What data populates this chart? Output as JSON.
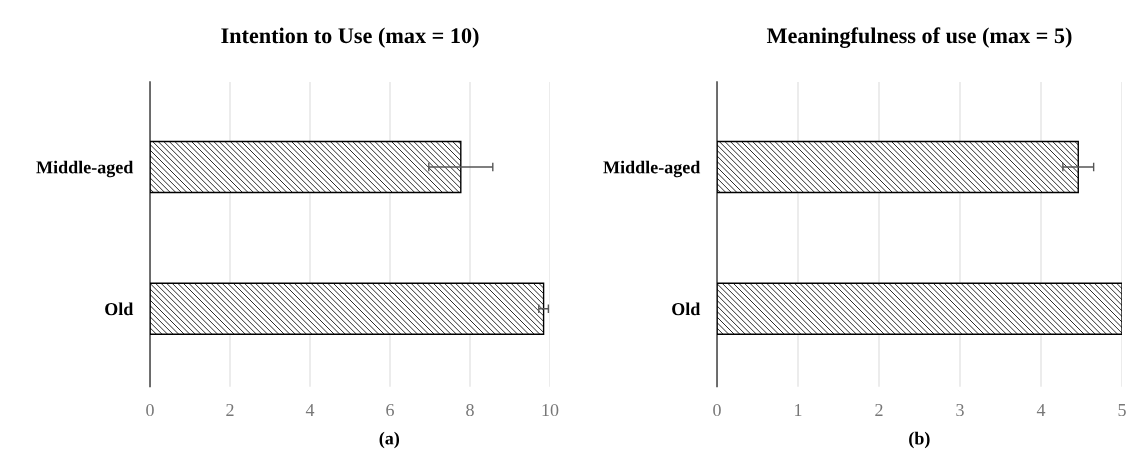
{
  "chart_data": [
    {
      "type": "bar",
      "orientation": "horizontal",
      "title": "Intention to Use (max = 10)",
      "categories": [
        "Middle-aged",
        "Old"
      ],
      "values": [
        7.77,
        9.84
      ],
      "errors": [
        0.8,
        0.12
      ],
      "color": "#000000",
      "xlim": [
        0,
        10
      ],
      "xticks": [
        0,
        2,
        4,
        6,
        8,
        10
      ],
      "grid": "x",
      "annotations": [
        "(a)"
      ]
    },
    {
      "type": "bar",
      "orientation": "horizontal",
      "title": "Meaningfulness of use (max = 5)",
      "categories": [
        "Middle-aged",
        "Old"
      ],
      "values": [
        4.46,
        5.0
      ],
      "errors": [
        0.19,
        null
      ],
      "color": "#000000",
      "xlim": [
        0,
        5
      ],
      "xticks": [
        0,
        1,
        2,
        3,
        4,
        5
      ],
      "grid": "x",
      "annotations": [
        "(b)"
      ]
    }
  ]
}
